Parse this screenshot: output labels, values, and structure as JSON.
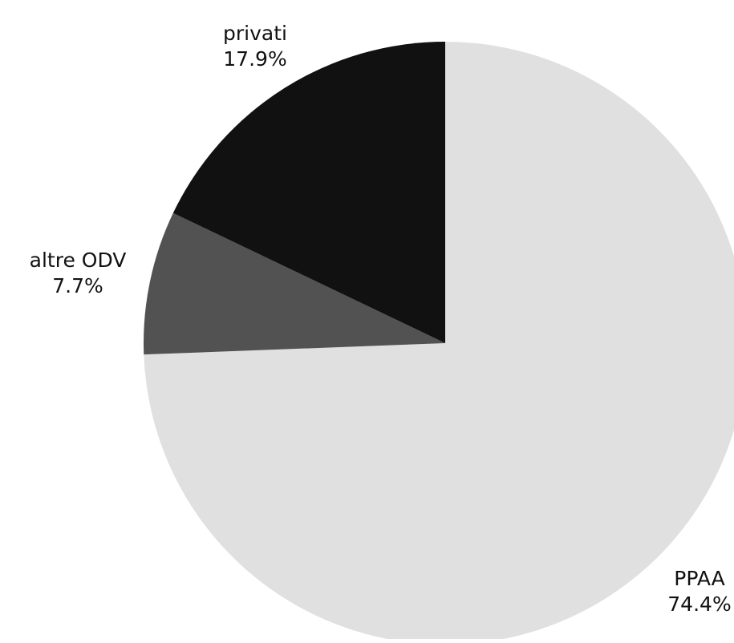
{
  "chart_data": {
    "type": "pie",
    "title": "",
    "start_angle_deg": 0,
    "direction": "clockwise",
    "slices": [
      {
        "label": "PPAA",
        "value": 74.4,
        "value_label": "74.4%",
        "color": "#e0e0e0"
      },
      {
        "label": "altre ODV",
        "value": 7.7,
        "value_label": "7.7%",
        "color": "#525252"
      },
      {
        "label": "privati",
        "value": 17.9,
        "value_label": "17.9%",
        "color": "#111111"
      }
    ]
  }
}
